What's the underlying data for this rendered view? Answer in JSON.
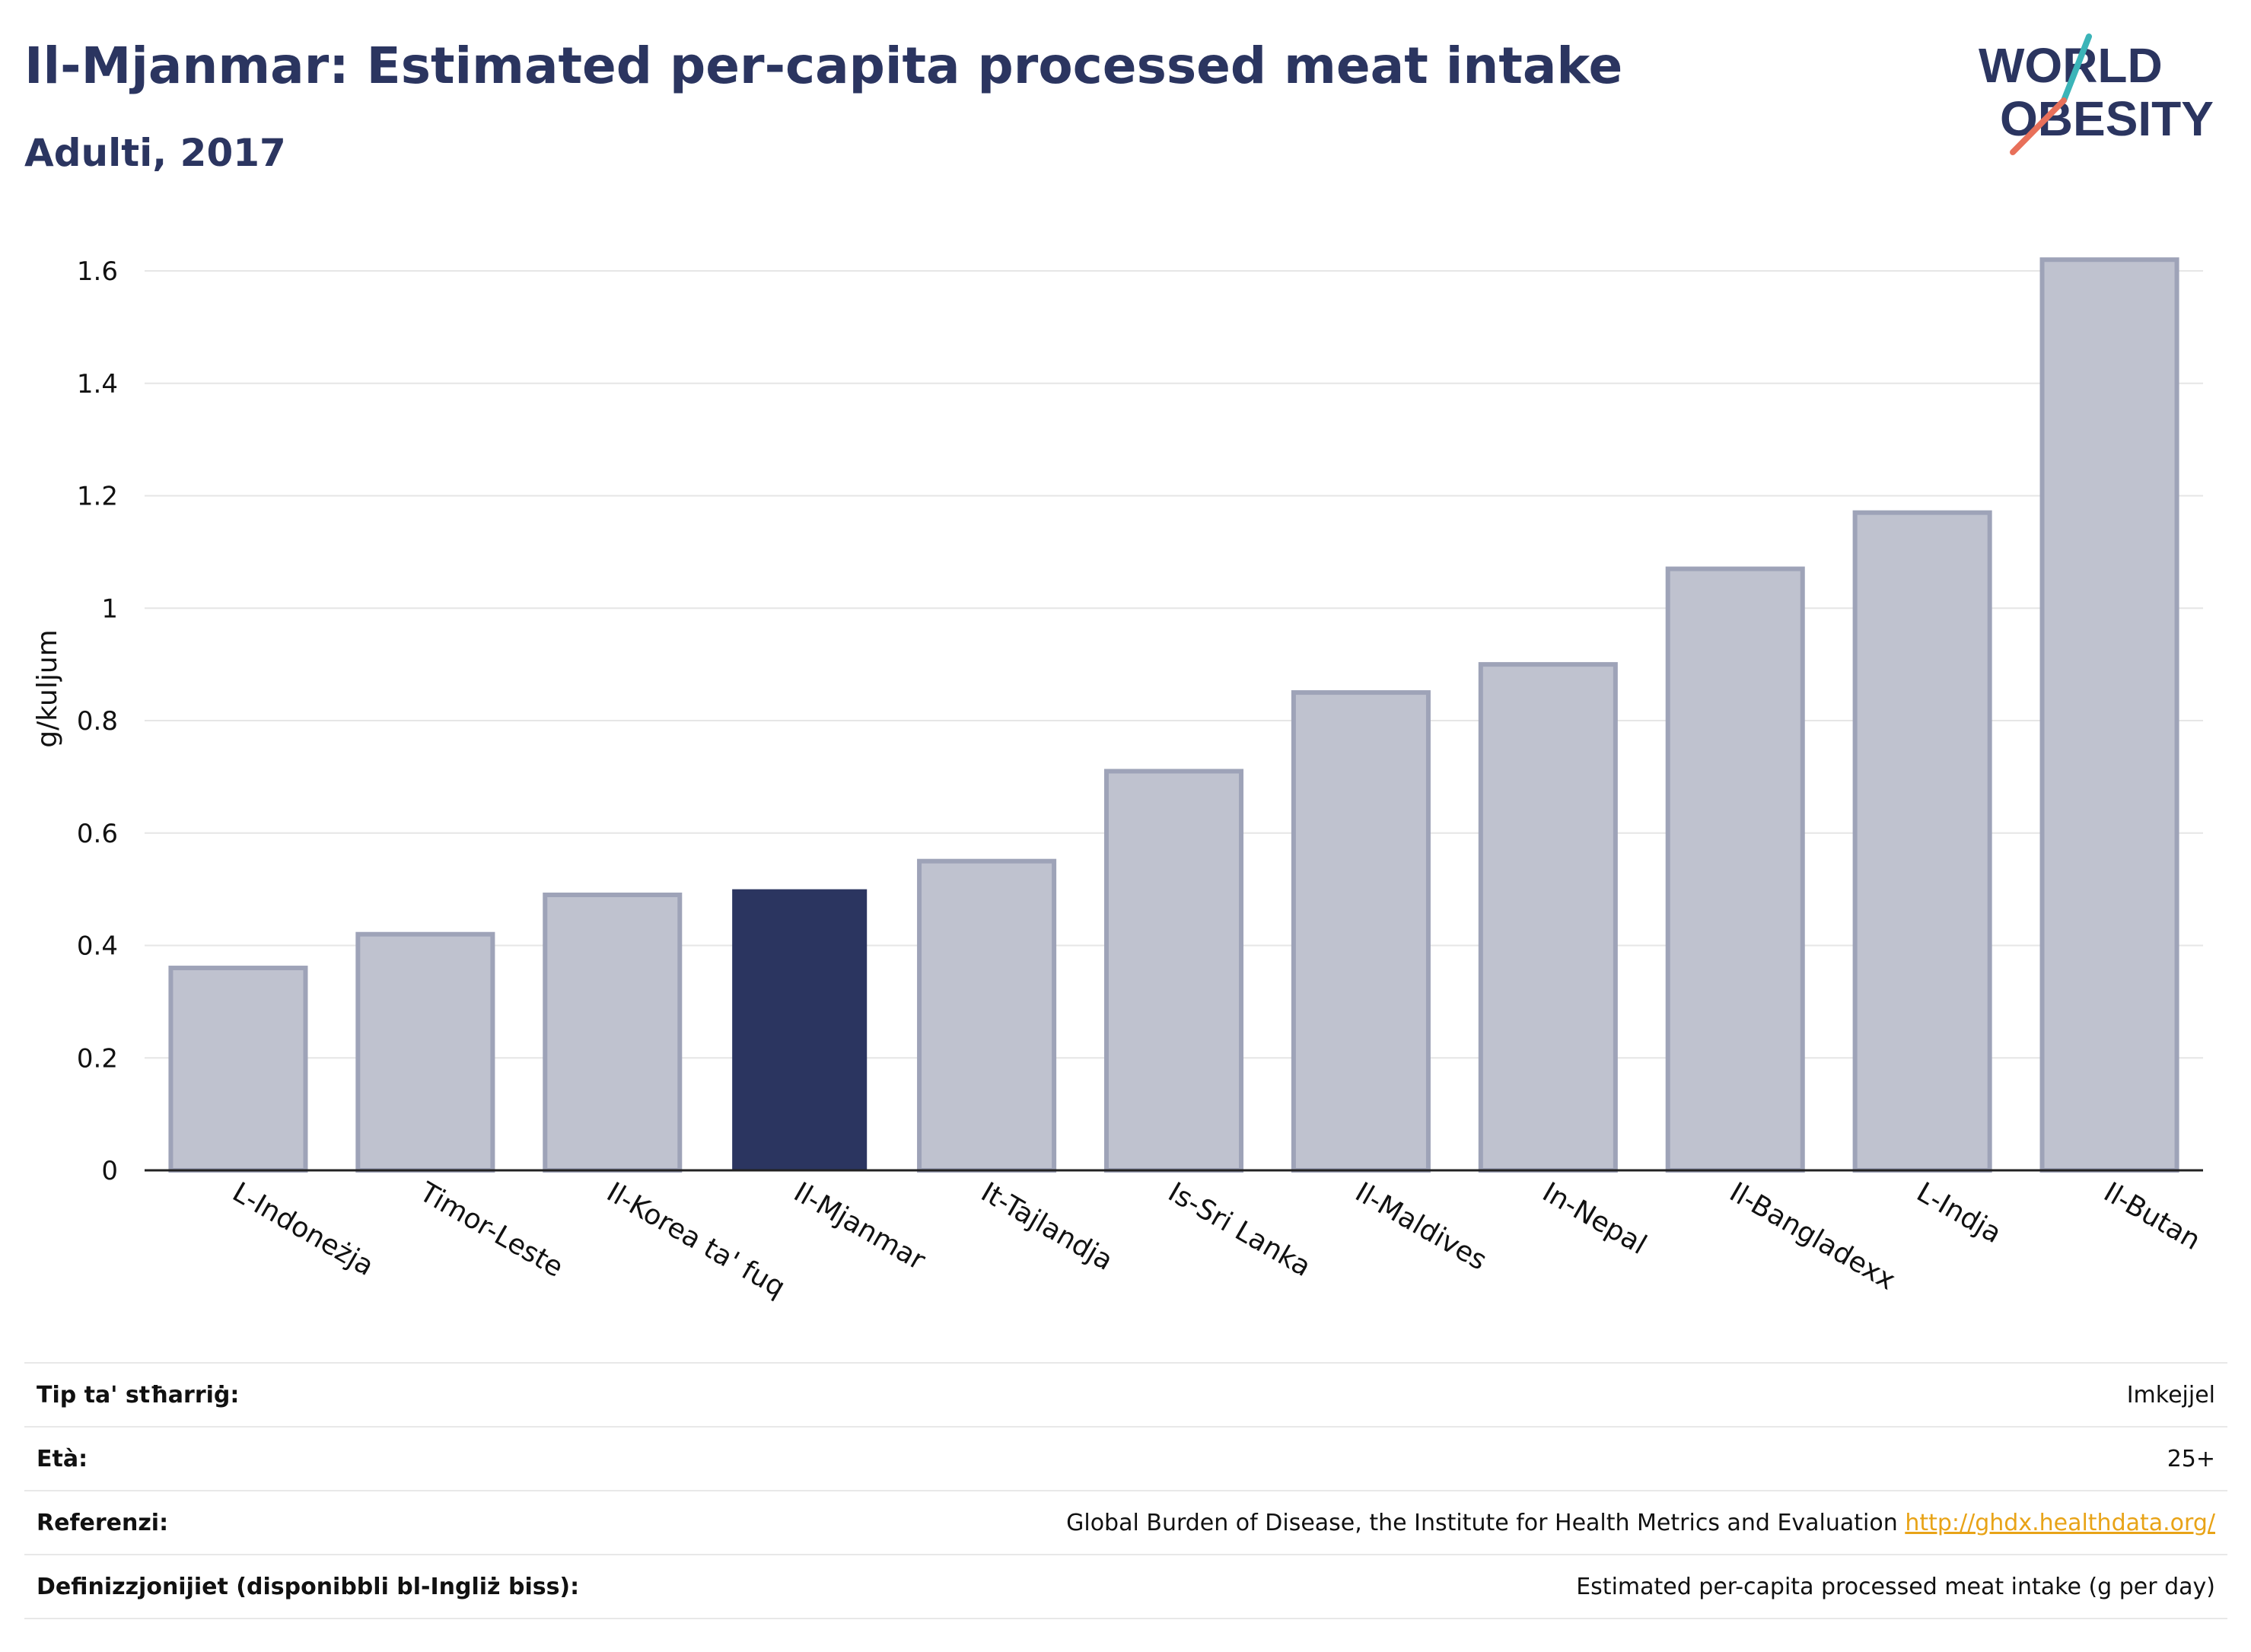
{
  "header": {
    "title": "Il-Mjanmar: Estimated per-capita processed meat intake",
    "subtitle": "Adulti, 2017"
  },
  "logo": {
    "line1": "WORLD",
    "line2": "OBESITY"
  },
  "chart_data": {
    "type": "bar",
    "categories": [
      "L-Indoneżja",
      "Timor-Leste",
      "Il-Korea ta' fuq",
      "Il-Mjanmar",
      "It-Tajlandja",
      "Is-Sri Lanka",
      "Il-Maldives",
      "In-Nepal",
      "Il-Bangladexx",
      "L-Indja",
      "Il-Butan"
    ],
    "values": [
      0.36,
      0.42,
      0.49,
      0.5,
      0.55,
      0.71,
      0.85,
      0.9,
      1.07,
      1.17,
      1.62
    ],
    "highlight": "Il-Mjanmar",
    "ylabel": "g/kuljum",
    "ylim": [
      0,
      1.7
    ],
    "yticks": [
      0,
      0.2,
      0.4,
      0.6,
      0.8,
      1,
      1.2,
      1.4,
      1.6
    ],
    "ytick_labels": [
      "0",
      "0.2",
      "0.4",
      "0.6",
      "0.8",
      "1",
      "1.2",
      "1.4",
      "1.6"
    ],
    "grid": true,
    "colors": {
      "bar": "#bfc2cf",
      "bar_border": "#9ea3b8",
      "highlight": "#2b3560"
    }
  },
  "info": [
    {
      "key": "Tip ta' stħarriġ:",
      "value": "Imkejjel"
    },
    {
      "key": "Età:",
      "value": "25+"
    },
    {
      "key": "Referenzi:",
      "value": "Global Burden of Disease, the Institute for Health Metrics and Evaluation",
      "link": "http://ghdx.healthdata.org/"
    },
    {
      "key": "Definizzjonijiet (disponibbli bl-Ingliż biss):",
      "value": "Estimated per-capita processed meat intake (g per day)"
    }
  ]
}
